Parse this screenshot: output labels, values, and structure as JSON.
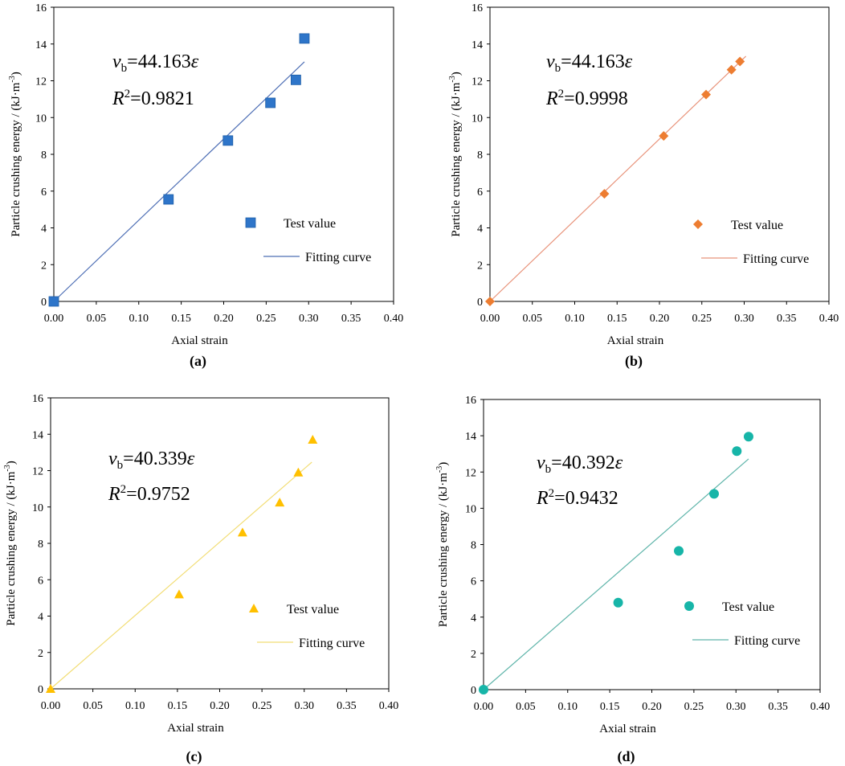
{
  "chart_data": [
    {
      "type": "scatter",
      "caption": "(a)",
      "xlabel": "Axial strain",
      "ylabel": "Particle crushing energy / (kJ·m",
      "ylabel_sup": "-3",
      "ylabel_end": ")",
      "xlim": [
        0,
        0.4
      ],
      "ylim": [
        0,
        16
      ],
      "x_ticks": [
        "0.00",
        "0.05",
        "0.10",
        "0.15",
        "0.20",
        "0.25",
        "0.30",
        "0.35",
        "0.40"
      ],
      "y_ticks": [
        "0",
        "2",
        "4",
        "6",
        "8",
        "10",
        "12",
        "14",
        "16"
      ],
      "equation_var": "v",
      "equation_sub": "b",
      "equation_rhs": "=44.163",
      "equation_eps": "ε",
      "r2_label": "R",
      "r2_sup": "2",
      "r2_value": "=0.9821",
      "slope": 44.163,
      "fit_x_max": 0.295,
      "marker": "square",
      "color": "#2e75c9",
      "line_color": "#4e6fb5",
      "series": [
        {
          "name": "Test value",
          "x": [
            0,
            0.135,
            0.205,
            0.255,
            0.285,
            0.295
          ],
          "y": [
            0,
            5.55,
            8.75,
            10.8,
            12.05,
            14.3
          ]
        },
        {
          "name": "Fitting curve"
        }
      ]
    },
    {
      "type": "scatter",
      "caption": "(b)",
      "xlabel": "Axial strain",
      "ylabel": "Particle crushing energy / (kJ·m",
      "ylabel_sup": "-3",
      "ylabel_end": ")",
      "xlim": [
        0,
        0.4
      ],
      "ylim": [
        0,
        16
      ],
      "x_ticks": [
        "0.00",
        "0.05",
        "0.10",
        "0.15",
        "0.20",
        "0.25",
        "0.30",
        "0.35",
        "0.40"
      ],
      "y_ticks": [
        "0",
        "2",
        "4",
        "6",
        "8",
        "10",
        "12",
        "14",
        "16"
      ],
      "equation_var": "v",
      "equation_sub": "b",
      "equation_rhs": "=44.163",
      "equation_eps": "ε",
      "r2_label": "R",
      "r2_sup": "2",
      "r2_value": "=0.9998",
      "slope": 44.163,
      "fit_x_max": 0.302,
      "marker": "diamond",
      "color": "#ed7d31",
      "line_color": "#e8937a",
      "series": [
        {
          "name": "Test value",
          "x": [
            0,
            0.135,
            0.205,
            0.255,
            0.285,
            0.295
          ],
          "y": [
            0,
            5.85,
            9.0,
            11.25,
            12.6,
            13.05
          ]
        },
        {
          "name": "Fitting curve"
        }
      ]
    },
    {
      "type": "scatter",
      "caption": "(c)",
      "xlabel": "Axial strain",
      "ylabel": "Particle crushing energy / (kJ·m",
      "ylabel_sup": "-3",
      "ylabel_end": ")",
      "xlim": [
        0,
        0.4
      ],
      "ylim": [
        0,
        16
      ],
      "x_ticks": [
        "0.00",
        "0.05",
        "0.10",
        "0.15",
        "0.20",
        "0.25",
        "0.30",
        "0.35",
        "0.40"
      ],
      "y_ticks": [
        "0",
        "2",
        "4",
        "6",
        "8",
        "10",
        "12",
        "14",
        "16"
      ],
      "equation_var": "v",
      "equation_sub": "b",
      "equation_rhs": "=40.339",
      "equation_eps": "ε",
      "r2_label": "R",
      "r2_sup": "2",
      "r2_value": "=0.9752",
      "slope": 40.339,
      "fit_x_max": 0.309,
      "marker": "triangle",
      "color": "#ffc000",
      "line_color": "#f2dd73",
      "series": [
        {
          "name": "Test value",
          "x": [
            0,
            0.152,
            0.227,
            0.271,
            0.293,
            0.31
          ],
          "y": [
            0,
            5.2,
            8.6,
            10.25,
            11.9,
            13.7
          ]
        },
        {
          "name": "Fitting curve"
        }
      ]
    },
    {
      "type": "scatter",
      "caption": "(d)",
      "xlabel": "Axial strain",
      "ylabel": "Particle crushing energy / (kJ·m",
      "ylabel_sup": "-3",
      "ylabel_end": ")",
      "xlim": [
        0,
        0.4
      ],
      "ylim": [
        0,
        16
      ],
      "x_ticks": [
        "0.00",
        "0.05",
        "0.10",
        "0.15",
        "0.20",
        "0.25",
        "0.30",
        "0.35",
        "0.40"
      ],
      "y_ticks": [
        "0",
        "2",
        "4",
        "6",
        "8",
        "10",
        "12",
        "14",
        "16"
      ],
      "equation_var": "v",
      "equation_sub": "b",
      "equation_rhs": "=40.392",
      "equation_eps": "ε",
      "r2_label": "R",
      "r2_sup": "2",
      "r2_value": "=0.9432",
      "slope": 40.392,
      "fit_x_max": 0.315,
      "marker": "circle",
      "color": "#17b5a8",
      "line_color": "#5fb5aa",
      "series": [
        {
          "name": "Test value",
          "x": [
            0,
            0.16,
            0.232,
            0.274,
            0.301,
            0.315
          ],
          "y": [
            0,
            4.8,
            7.65,
            10.8,
            13.15,
            13.95
          ]
        },
        {
          "name": "Fitting curve"
        }
      ]
    }
  ]
}
